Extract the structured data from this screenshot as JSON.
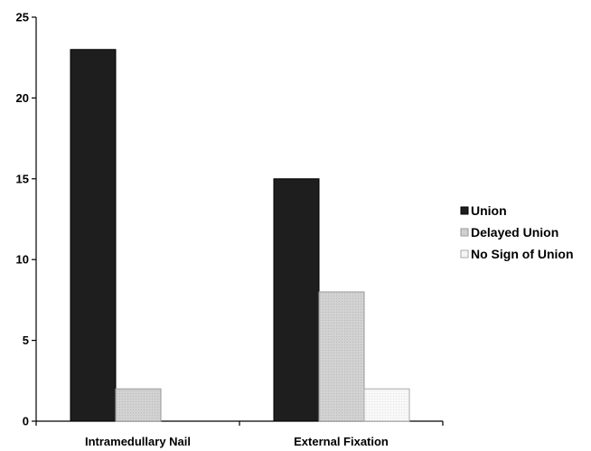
{
  "chart_data": {
    "type": "bar",
    "categories": [
      "Intramedullary Nail",
      "External Fixation"
    ],
    "series": [
      {
        "name": "Union",
        "values": [
          23,
          15
        ],
        "color": "#1e1e1e"
      },
      {
        "name": "Delayed Union",
        "values": [
          2,
          8
        ],
        "color": "#cfcfcf"
      },
      {
        "name": "No Sign of Union",
        "values": [
          0,
          2
        ],
        "color": "#f6f6f6"
      }
    ],
    "ylim": [
      0,
      25
    ],
    "yticks": [
      "0",
      "5",
      "10",
      "15",
      "20",
      "25"
    ],
    "grid": false,
    "legend": "right"
  }
}
